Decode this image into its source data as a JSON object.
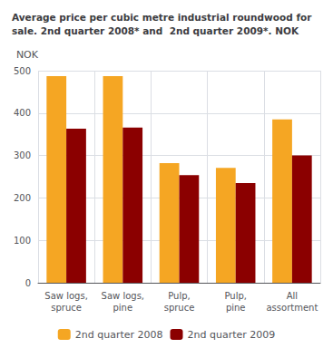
{
  "chart_data": {
    "type": "bar",
    "title": "Average price per cubic metre industrial roundwood for\nsale. 2nd quarter 2008* and  2nd quarter 2009*. NOK",
    "ylabel": "NOK",
    "categories": [
      "Saw logs,\nspruce",
      "Saw logs,\npine",
      "Pulp,\nspruce",
      "Pulp,\npine",
      "All\nassortment"
    ],
    "series": [
      {
        "name": "2nd quarter 2008",
        "color": "#F5A623",
        "values": [
          487,
          487,
          282,
          271,
          385
        ]
      },
      {
        "name": "2nd quarter 2009",
        "color": "#8B0000",
        "values": [
          363,
          366,
          254,
          235,
          300
        ]
      }
    ],
    "ylim": [
      0,
      500
    ],
    "yticks": [
      0,
      100,
      200,
      300,
      400,
      500
    ],
    "grid": true,
    "legend": "bottom"
  }
}
